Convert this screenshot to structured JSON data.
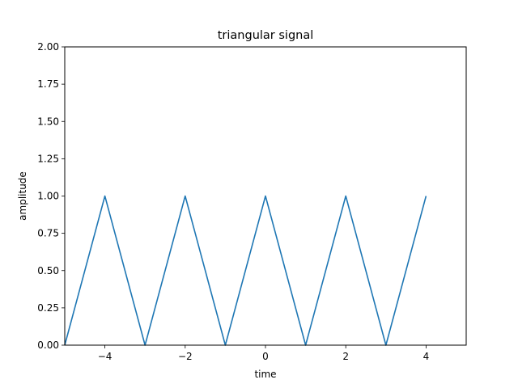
{
  "chart_data": {
    "type": "line",
    "title": "triangular signal",
    "xlabel": "time",
    "ylabel": "amplitude",
    "xlim": [
      -5,
      5
    ],
    "ylim": [
      0,
      2
    ],
    "grid": false,
    "x_ticks": [
      -4,
      -2,
      0,
      2,
      4
    ],
    "x_tick_labels": [
      "−4",
      "−2",
      "0",
      "2",
      "4"
    ],
    "y_ticks": [
      0,
      0.25,
      0.5,
      0.75,
      1.0,
      1.25,
      1.5,
      1.75,
      2.0
    ],
    "y_tick_labels": [
      "0.00",
      "0.25",
      "0.50",
      "0.75",
      "1.00",
      "1.25",
      "1.50",
      "1.75",
      "2.00"
    ],
    "series": [
      {
        "color": "#1f77b4",
        "x": [
          -5,
          -4,
          -3,
          -2,
          -1,
          0,
          1,
          2,
          3,
          4
        ],
        "y": [
          0,
          1,
          0,
          1,
          0,
          1,
          0,
          1,
          0,
          1
        ]
      }
    ]
  }
}
